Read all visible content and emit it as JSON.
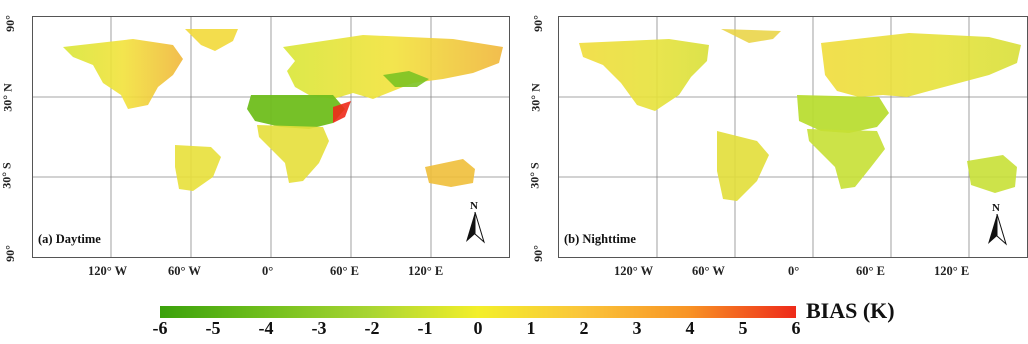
{
  "panels": [
    {
      "title": "(a) Daytime",
      "lat_labels": [
        "90°",
        "30° N",
        "30° S",
        "90°"
      ],
      "lon_labels": [
        "120° W",
        "60° W",
        "0°",
        "60° E",
        "120° E"
      ]
    },
    {
      "title": "(b) Nighttime",
      "lat_labels": [
        "90°",
        "30° N",
        "30° S",
        "90°"
      ],
      "lon_labels": [
        "120° W",
        "60° W",
        "0°",
        "60° E",
        "120° E"
      ]
    }
  ],
  "north_arrow": "N",
  "colorbar": {
    "title": "BIAS (K)",
    "ticks": [
      "-6",
      "-5",
      "-4",
      "-3",
      "-2",
      "-1",
      "0",
      "1",
      "2",
      "3",
      "4",
      "5",
      "6"
    ],
    "colors": [
      "#3aa10b",
      "#6fbe1c",
      "#a8d532",
      "#f3ef2a",
      "#fac63a",
      "#f89425",
      "#ee2a1a"
    ]
  }
}
